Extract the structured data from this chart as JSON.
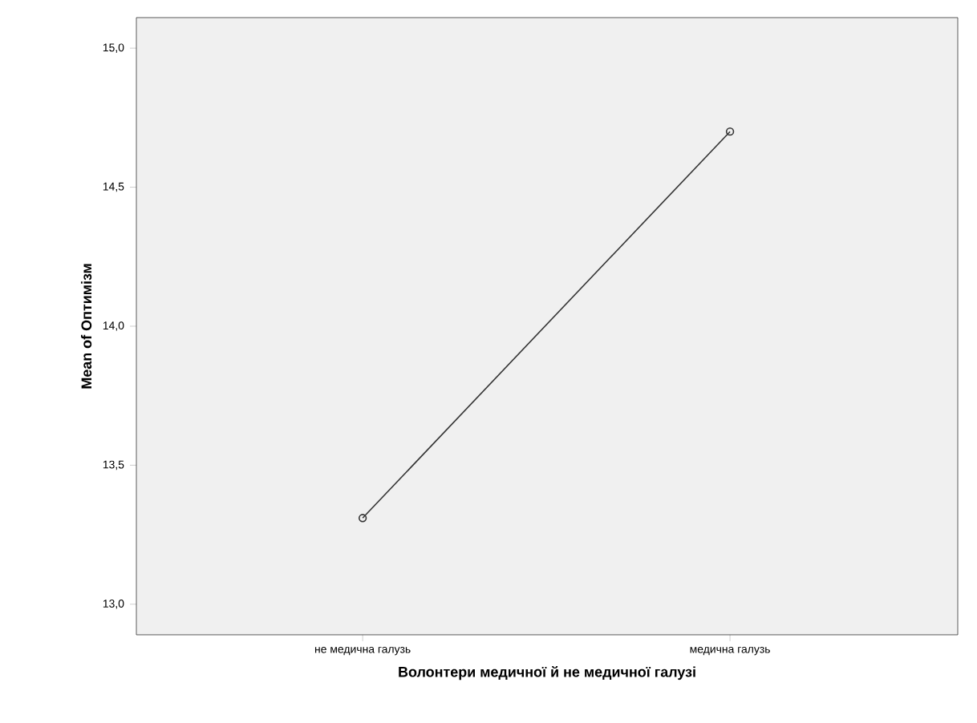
{
  "chart_data": {
    "type": "line",
    "xlabel": "Волонтери медичної й не медичної галузі",
    "ylabel": "Mean of Оптимізм",
    "categories": [
      "не медична галузь",
      "медична галузь"
    ],
    "values": [
      13.31,
      14.7
    ],
    "color": "#333333",
    "marker": "circle",
    "ylim": [
      12.89,
      15.11
    ],
    "yticks": [
      {
        "value": 13.0,
        "label": "13,0"
      },
      {
        "value": 13.5,
        "label": "13,5"
      },
      {
        "value": 14.0,
        "label": "14,0"
      },
      {
        "value": 14.5,
        "label": "14,5"
      },
      {
        "value": 15.0,
        "label": "15,0"
      }
    ]
  }
}
